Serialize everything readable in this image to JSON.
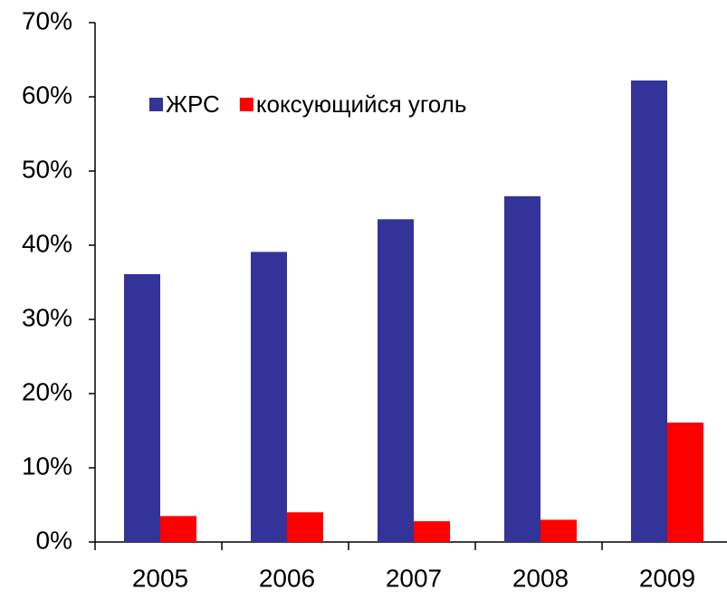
{
  "chart_data": {
    "type": "bar",
    "categories": [
      "2005",
      "2006",
      "2007",
      "2008",
      "2009"
    ],
    "series": [
      {
        "name": "ЖРС",
        "color": "#333399",
        "values": [
          36.1,
          39.1,
          43.5,
          46.6,
          62.2
        ]
      },
      {
        "name": "коксующийся уголь",
        "color": "#ff0000",
        "values": [
          3.5,
          4.0,
          2.8,
          3.0,
          16.1
        ]
      }
    ],
    "ylim": [
      0,
      70
    ],
    "yticks": [
      {
        "value": 0,
        "label": "0%"
      },
      {
        "value": 10,
        "label": "10%"
      },
      {
        "value": 20,
        "label": "20%"
      },
      {
        "value": 30,
        "label": "30%"
      },
      {
        "value": 40,
        "label": "40%"
      },
      {
        "value": 50,
        "label": "50%"
      },
      {
        "value": 60,
        "label": "60%"
      },
      {
        "value": 70,
        "label": "70%"
      }
    ],
    "legend": "top-left"
  }
}
